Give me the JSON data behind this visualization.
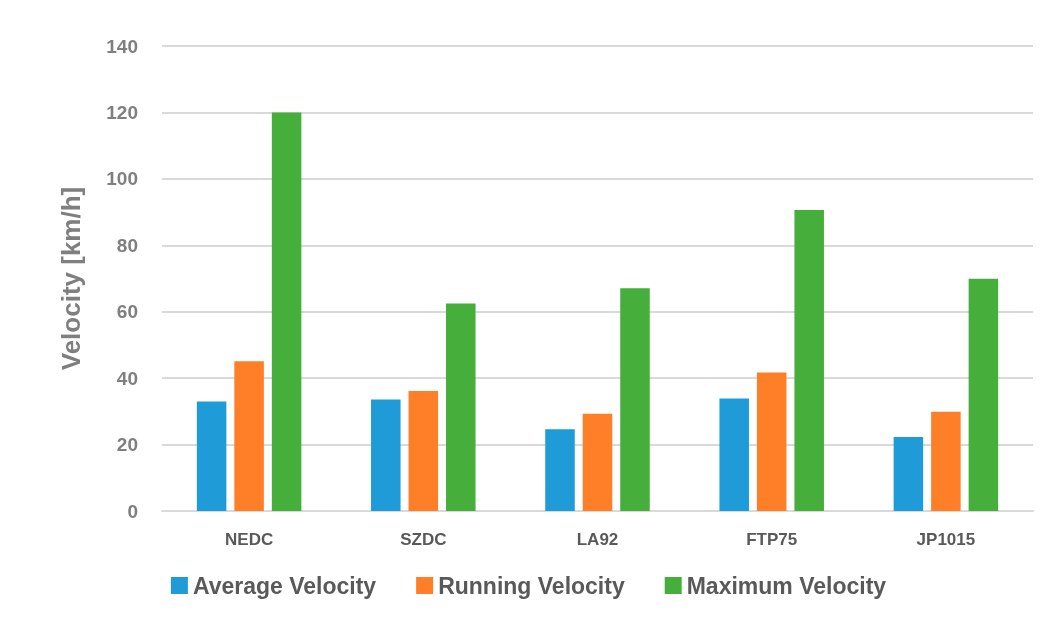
{
  "chart_data": {
    "type": "bar",
    "ylabel": "Velocity [km/h]",
    "categories": [
      "NEDC",
      "SZDC",
      "LA92",
      "FTP75",
      "JP1015"
    ],
    "series": [
      {
        "name": "Average Velocity",
        "color": "#1f9bd7",
        "values": [
          33.0,
          33.6,
          24.6,
          33.9,
          22.3
        ]
      },
      {
        "name": "Running Velocity",
        "color": "#fe7f27",
        "values": [
          45.1,
          36.1,
          29.3,
          41.7,
          29.9
        ]
      },
      {
        "name": "Maximum Velocity",
        "color": "#46ae3a",
        "values": [
          120,
          62.5,
          67.1,
          90.6,
          69.9
        ]
      }
    ],
    "ylim": [
      0,
      140
    ],
    "yticks": [
      0,
      20,
      40,
      60,
      80,
      100,
      120,
      140
    ],
    "grid": "y",
    "legend": "bottom"
  }
}
